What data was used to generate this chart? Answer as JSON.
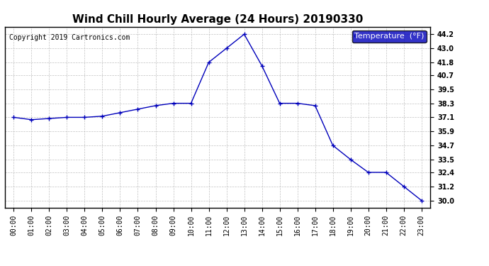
{
  "title": "Wind Chill Hourly Average (24 Hours) 20190330",
  "copyright": "Copyright 2019 Cartronics.com",
  "legend_label": "Temperature  (°F)",
  "hours": [
    "00:00",
    "01:00",
    "02:00",
    "03:00",
    "04:00",
    "05:00",
    "06:00",
    "07:00",
    "08:00",
    "09:00",
    "10:00",
    "11:00",
    "12:00",
    "13:00",
    "14:00",
    "15:00",
    "16:00",
    "17:00",
    "18:00",
    "19:00",
    "20:00",
    "21:00",
    "22:00",
    "23:00"
  ],
  "values": [
    37.1,
    36.9,
    37.0,
    37.1,
    37.1,
    37.2,
    37.5,
    37.8,
    38.1,
    38.3,
    38.3,
    41.8,
    43.0,
    44.2,
    41.5,
    38.3,
    38.3,
    38.1,
    34.7,
    33.5,
    32.4,
    32.4,
    31.2,
    30.0
  ],
  "ylim_min": 29.4,
  "ylim_max": 44.85,
  "yticks": [
    44.2,
    43.0,
    41.8,
    40.7,
    39.5,
    38.3,
    37.1,
    35.9,
    34.7,
    33.5,
    32.4,
    31.2,
    30.0
  ],
  "line_color": "#0000BB",
  "marker": "+",
  "marker_size": 5,
  "marker_edge_width": 1.0,
  "line_width": 1.0,
  "bg_color": "#ffffff",
  "plot_bg_color": "#ffffff",
  "grid_color": "#bbbbbb",
  "title_fontsize": 11,
  "tick_fontsize": 7,
  "copyright_fontsize": 7,
  "legend_bg": "#0000BB",
  "legend_text_color": "#ffffff",
  "legend_fontsize": 8
}
